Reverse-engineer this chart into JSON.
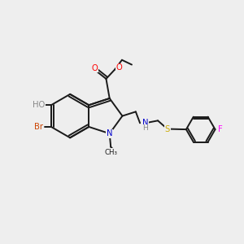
{
  "bg_color": "#eeeeee",
  "bond_color": "#1a1a1a",
  "atom_colors": {
    "O": "#ff0000",
    "N": "#0000cc",
    "Br": "#cc4400",
    "S": "#ccaa00",
    "F": "#ff00ff",
    "HO": "#888888",
    "C": "#1a1a1a"
  },
  "lw": 1.4,
  "fs": 7.2
}
